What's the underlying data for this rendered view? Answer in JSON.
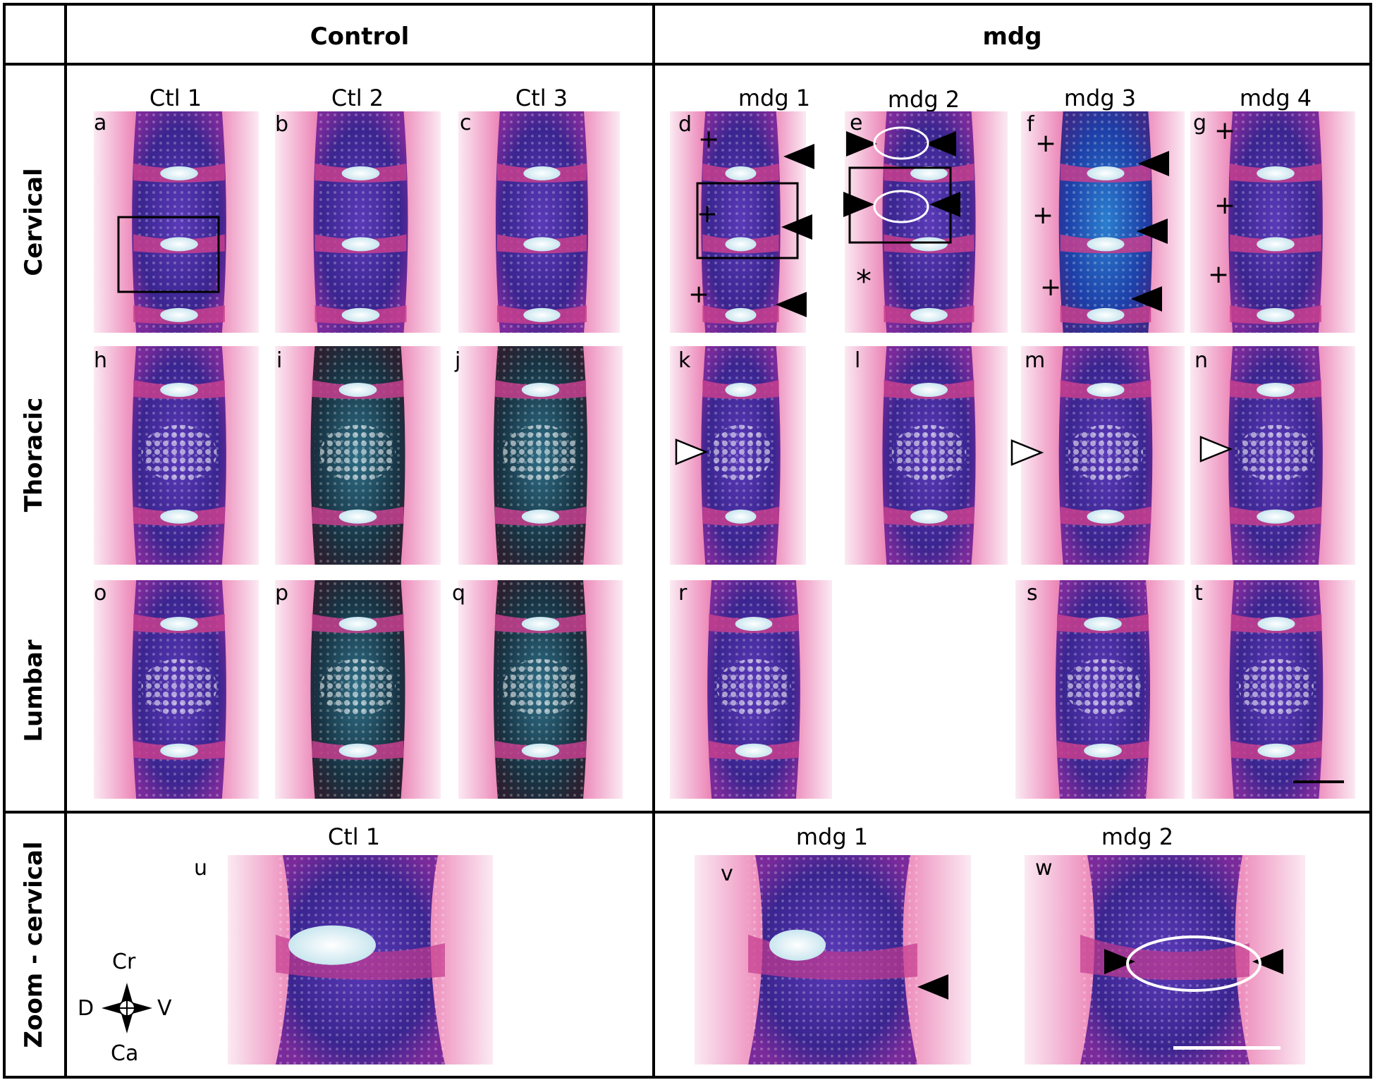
{
  "figure": {
    "header": {
      "control": "Control",
      "mdg": "mdg"
    },
    "rows": {
      "cervical": "Cervical",
      "thoracic": "Thoracic",
      "lumbar": "Lumbar",
      "zoom": "Zoom - cervical"
    },
    "columns": {
      "ctl1": "Ctl 1",
      "ctl2": "Ctl 2",
      "ctl3": "Ctl 3",
      "mdg1": "mdg 1",
      "mdg2": "mdg 2",
      "mdg3": "mdg 3",
      "mdg4": "mdg 4"
    },
    "zoom_titles": {
      "ctl1": "Ctl 1",
      "mdg1": "mdg 1",
      "mdg2": "mdg 2"
    },
    "panel_letters": {
      "a": "a",
      "b": "b",
      "c": "c",
      "d": "d",
      "e": "e",
      "f": "f",
      "g": "g",
      "h": "h",
      "i": "i",
      "j": "j",
      "k": "k",
      "l": "l",
      "m": "m",
      "n": "n",
      "o": "o",
      "p": "p",
      "q": "q",
      "r": "r",
      "s": "s",
      "t": "t",
      "u": "u",
      "v": "v",
      "w": "w"
    },
    "markers": {
      "plus": "+",
      "asterisk": "*"
    },
    "orientation": {
      "cranial": "Cr",
      "caudal": "Ca",
      "dorsal": "D",
      "ventral": "V"
    },
    "colors": {
      "tissue_pink": "#e0579a",
      "cartilage_blue": "#3c2a9c",
      "dark_stain": "#1f3a4a",
      "line": "#000000"
    }
  }
}
